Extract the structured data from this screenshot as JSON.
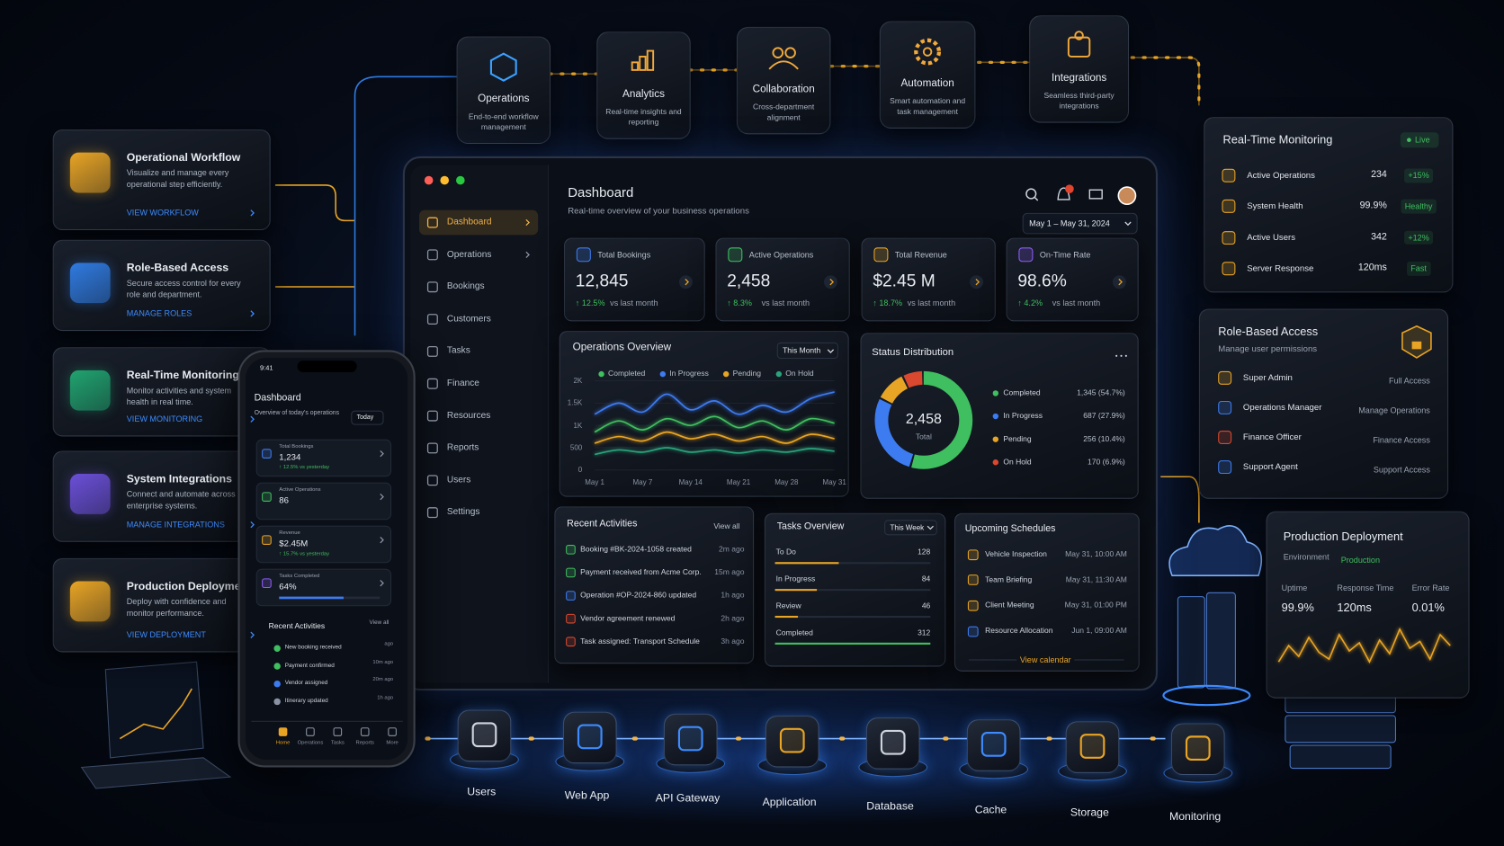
{
  "top_modules": [
    {
      "title": "Operations",
      "desc": "End-to-end workflow management"
    },
    {
      "title": "Analytics",
      "desc": "Real-time insights and reporting"
    },
    {
      "title": "Collaboration",
      "desc": "Cross-department alignment"
    },
    {
      "title": "Automation",
      "desc": "Smart automation and task management"
    },
    {
      "title": "Integrations",
      "desc": "Seamless third-party integrations"
    }
  ],
  "left_cards": [
    {
      "title": "Operational Workflow",
      "desc": "Visualize and manage every operational step efficiently.",
      "link": "VIEW WORKFLOW"
    },
    {
      "title": "Role-Based Access",
      "desc": "Secure access control for every role and department.",
      "link": "MANAGE ROLES"
    },
    {
      "title": "Real-Time Monitoring",
      "desc": "Monitor activities and system health in real time.",
      "link": "VIEW MONITORING"
    },
    {
      "title": "System Integrations",
      "desc": "Connect and automate across all enterprise systems.",
      "link": "MANAGE INTEGRATIONS"
    },
    {
      "title": "Production Deployment",
      "desc": "Deploy with confidence and monitor performance.",
      "link": "VIEW DEPLOYMENT"
    }
  ],
  "dashboard": {
    "title": "Dashboard",
    "subtitle": "Real-time overview of your business operations",
    "notifications": "1",
    "date_range": "May 1 – May 31, 2024",
    "nav": [
      "Dashboard",
      "Operations",
      "Bookings",
      "Customers",
      "Tasks",
      "Finance",
      "Resources",
      "Reports",
      "Users",
      "Settings"
    ],
    "kpis": [
      {
        "label": "Total Bookings",
        "value": "12,845",
        "change": "↑ 12.5%",
        "note": "vs last month"
      },
      {
        "label": "Active Operations",
        "value": "2,458",
        "change": "↑ 8.3%",
        "note": "vs last month"
      },
      {
        "label": "Total Revenue",
        "value": "$2.45 M",
        "change": "↑ 18.7%",
        "note": "vs last month"
      },
      {
        "label": "On-Time Rate",
        "value": "98.6%",
        "change": "↑ 4.2%",
        "note": "vs last month"
      }
    ],
    "recent_activities": {
      "title": "Recent Activities",
      "view_all": "View all",
      "items": [
        {
          "text": "Booking #BK-2024-1058 created",
          "time": "2m ago"
        },
        {
          "text": "Payment received from Acme Corp.",
          "time": "15m ago"
        },
        {
          "text": "Operation #OP-2024-860 updated",
          "time": "1h ago"
        },
        {
          "text": "Vendor agreement renewed",
          "time": "2h ago"
        },
        {
          "text": "Task assigned: Transport Schedule",
          "time": "3h ago"
        }
      ]
    },
    "tasks_overview": {
      "title": "Tasks Overview",
      "filter": "This Week",
      "items": [
        {
          "name": "To Do",
          "value": 128
        },
        {
          "name": "In Progress",
          "value": 84
        },
        {
          "name": "Review",
          "value": 46
        },
        {
          "name": "Completed",
          "value": 312
        }
      ]
    },
    "upcoming_schedules": {
      "title": "Upcoming Schedules",
      "link": "View calendar",
      "items": [
        {
          "name": "Vehicle Inspection",
          "when": "May 31, 10:00 AM"
        },
        {
          "name": "Team Briefing",
          "when": "May 31, 11:30 AM"
        },
        {
          "name": "Client Meeting",
          "when": "May 31, 01:00 PM"
        },
        {
          "name": "Resource Allocation",
          "when": "Jun 1, 09:00 AM"
        }
      ]
    }
  },
  "monitoring_panel": {
    "title": "Real-Time Monitoring",
    "status": "Live",
    "rows": [
      {
        "label": "Active Operations",
        "value": "234",
        "badge": "+15%"
      },
      {
        "label": "System Health",
        "value": "99.9%",
        "badge": "Healthy"
      },
      {
        "label": "Active Users",
        "value": "342",
        "badge": "+12%"
      },
      {
        "label": "Server Response",
        "value": "120ms",
        "badge": "Fast"
      }
    ]
  },
  "roles_panel": {
    "title": "Role-Based Access",
    "subtitle": "Manage user permissions",
    "rows": [
      {
        "role": "Super Admin",
        "access": "Full Access"
      },
      {
        "role": "Operations Manager",
        "access": "Manage Operations"
      },
      {
        "role": "Finance Officer",
        "access": "Finance Access"
      },
      {
        "role": "Support Agent",
        "access": "Support Access"
      }
    ]
  },
  "production_panel": {
    "title": "Production Deployment",
    "environment_label": "Environment",
    "environment": "Production",
    "metrics": [
      {
        "label": "Uptime",
        "value": "99.9%"
      },
      {
        "label": "Response Time",
        "value": "120ms"
      },
      {
        "label": "Error Rate",
        "value": "0.01%"
      }
    ]
  },
  "phone": {
    "time": "9:41",
    "title": "Dashboard",
    "subtitle": "Overview of today's operations",
    "filter": "Today",
    "kpis": [
      {
        "label": "Total Bookings",
        "value": "1,234",
        "note": "↑ 12.5% vs yesterday"
      },
      {
        "label": "Active Operations",
        "value": "86"
      },
      {
        "label": "Revenue",
        "value": "$2.45M",
        "note": "↑ 15.7% vs yesterday"
      },
      {
        "label": "Tasks Completed",
        "value": "64%",
        "progress": 64
      }
    ],
    "activities_title": "Recent Activities",
    "view_all": "View all",
    "activities": [
      {
        "text": "New booking received",
        "time": "ago"
      },
      {
        "text": "Payment confirmed",
        "time": "10m ago"
      },
      {
        "text": "Vendor assigned",
        "time": "20m ago"
      },
      {
        "text": "Itinerary updated",
        "time": "1h ago"
      }
    ],
    "tabs": [
      "Home",
      "Operations",
      "Tasks",
      "Reports",
      "More"
    ]
  },
  "pipeline": [
    "Users",
    "Web App",
    "API Gateway",
    "Application",
    "Database",
    "Cache",
    "Storage",
    "Monitoring"
  ],
  "chart_data": [
    {
      "type": "line",
      "title": "Operations Overview",
      "filter": "This Month",
      "categories": [
        "May 1",
        null,
        "May 7",
        null,
        "May 14",
        null,
        "May 21",
        null,
        "May 28",
        null,
        "May 31"
      ],
      "series": [
        {
          "name": "Completed",
          "color": "#3fbf5f",
          "values": [
            850,
            1100,
            900,
            1150,
            1000,
            1200,
            950,
            1100,
            900,
            1150,
            1050
          ]
        },
        {
          "name": "In Progress",
          "color": "#3d7bf0",
          "values": [
            1250,
            1500,
            1300,
            1700,
            1350,
            1550,
            1250,
            1450,
            1300,
            1600,
            1750
          ]
        },
        {
          "name": "Pending",
          "color": "#e8a424",
          "values": [
            600,
            750,
            650,
            850,
            700,
            800,
            650,
            750,
            600,
            800,
            700
          ]
        },
        {
          "name": "On Hold",
          "color": "#2aa37a",
          "values": [
            350,
            450,
            400,
            500,
            400,
            450,
            380,
            450,
            400,
            480,
            420
          ]
        }
      ],
      "ylim": [
        0,
        2000
      ],
      "yticks": [
        0,
        500,
        {
          "value": 1000,
          "label": "1K"
        },
        {
          "value": 1500,
          "label": "1.5K"
        },
        {
          "value": 2000,
          "label": "2K"
        }
      ],
      "grid": true
    },
    {
      "type": "pie",
      "title": "Status Distribution",
      "center_value": "2,458",
      "center_label": "Total",
      "categories": [
        "Completed",
        "In Progress",
        "Pending",
        "On Hold"
      ],
      "values": [
        1345,
        687,
        256,
        170
      ],
      "value_labels": [
        "1,345 (54.7%)",
        "687 (27.9%)",
        "256 (10.4%)",
        "170 (6.9%)"
      ],
      "colors": [
        "#3fbf5f",
        "#3d7bf0",
        "#e8a424",
        "#d9482f"
      ]
    },
    {
      "type": "line",
      "color": "#e8a424",
      "values": [
        48,
        60,
        52,
        66,
        55,
        50,
        68,
        56,
        62,
        48,
        64,
        54,
        72,
        58,
        63,
        50,
        68,
        60
      ]
    }
  ]
}
